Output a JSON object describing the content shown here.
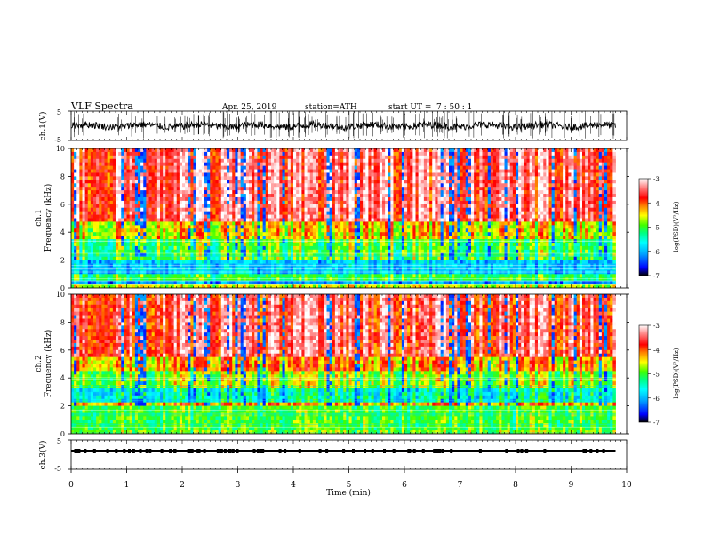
{
  "header": {
    "title": "VLF Spectra",
    "date": "Apr. 25, 2019",
    "station": "station=ATH",
    "start_label": "start UT =",
    "start_time": "7 : 50 : 1"
  },
  "colors": {
    "waveform": "#000000",
    "colormap": [
      "#000000",
      "#0000ff",
      "#00a0ff",
      "#00ffff",
      "#00ff80",
      "#40ff00",
      "#ffff00",
      "#ff8000",
      "#ff0000",
      "#ffffff"
    ]
  },
  "chart_data": [
    {
      "type": "line",
      "name": "ch1-waveform",
      "ylabel": "ch.1(V)",
      "ylim": [
        -5,
        5
      ],
      "yticks": [
        "5",
        "-5"
      ],
      "xlim": [
        0,
        10
      ],
      "x_end": 9.8,
      "level": 0,
      "amplitude": 1.2
    },
    {
      "type": "heatmap",
      "name": "ch1-spectrogram",
      "ylabel_channel": "ch.1",
      "ylabel": "Frequency (kHz)",
      "ylim": [
        0,
        10
      ],
      "yticks": [
        "0",
        "2",
        "4",
        "6",
        "8",
        "10"
      ],
      "xlim": [
        0,
        10
      ],
      "x_end": 9.8,
      "colorbar": {
        "label": "log(PSD)(V²/Hz)",
        "ticks": [
          "-3",
          "-4",
          "-5",
          "-6",
          "-7"
        ],
        "range": [
          -7,
          -3
        ]
      }
    },
    {
      "type": "heatmap",
      "name": "ch2-spectrogram",
      "ylabel_channel": "ch.2",
      "ylabel": "Frequency (kHz)",
      "ylim": [
        0,
        10
      ],
      "yticks": [
        "0",
        "2",
        "4",
        "6",
        "8",
        "10"
      ],
      "xlim": [
        0,
        10
      ],
      "x_end": 9.8,
      "colorbar": {
        "label": "log(PSD)(V²/Hz)",
        "ticks": [
          "-3",
          "-4",
          "-5",
          "-6",
          "-7"
        ],
        "range": [
          -7,
          -3
        ]
      }
    },
    {
      "type": "line",
      "name": "ch3-waveform",
      "ylabel": "ch.3(V)",
      "ylim": [
        -5,
        5
      ],
      "yticks": [
        "5",
        "-5"
      ],
      "xlim": [
        0,
        10
      ],
      "x_end": 9.8,
      "level": 1.2
    }
  ],
  "x_axis": {
    "label": "Time (min)",
    "ticks": [
      "0",
      "1",
      "2",
      "3",
      "4",
      "5",
      "6",
      "7",
      "8",
      "9",
      "10"
    ]
  }
}
